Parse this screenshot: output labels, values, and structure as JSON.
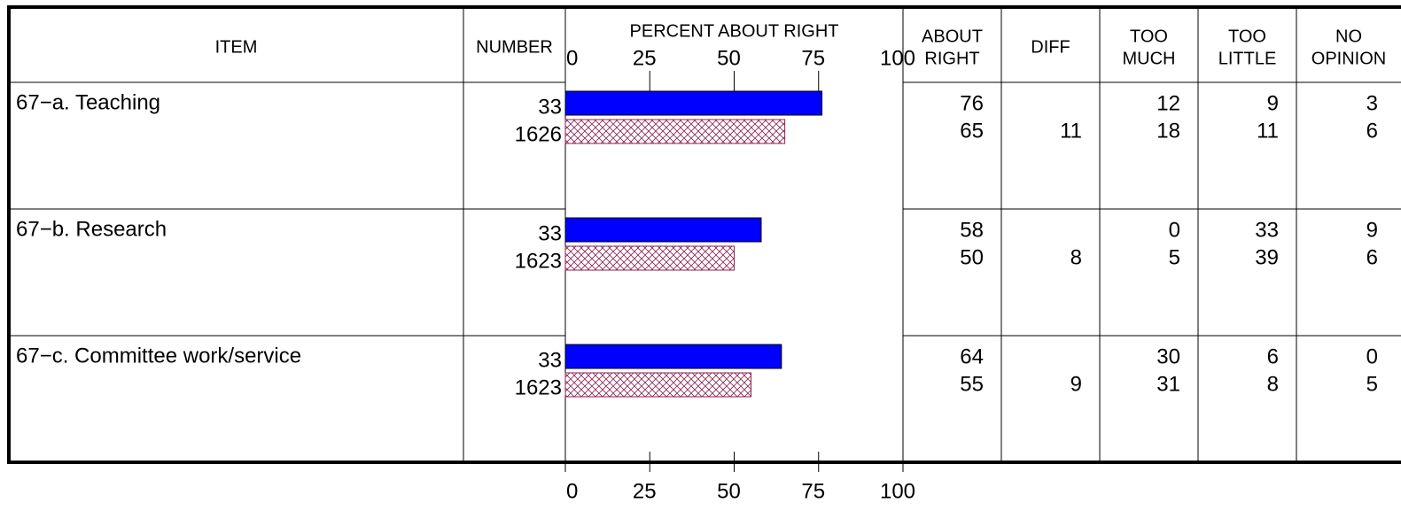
{
  "chart_data": {
    "type": "bar",
    "headers": [
      [
        "ITEM"
      ],
      [
        "NUMBER"
      ],
      [
        "PERCENT ABOUT RIGHT"
      ],
      [
        "ABOUT",
        "RIGHT"
      ],
      [
        "DIFF"
      ],
      [
        "TOO",
        "MUCH"
      ],
      [
        "TOO",
        "LITTLE"
      ],
      [
        "NO",
        "OPINION"
      ]
    ],
    "xlim": [
      0,
      100
    ],
    "xticks": [
      0,
      25,
      50,
      75,
      100
    ],
    "colors": [
      "#0000ff",
      "#8b2252"
    ],
    "rows": [
      {
        "item": "67−a. Teaching",
        "number": [
          33,
          1626
        ],
        "about_right": [
          76,
          65
        ],
        "diff": 11,
        "too_much": [
          12,
          18
        ],
        "too_little": [
          9,
          11
        ],
        "no_opinion": [
          3,
          6
        ]
      },
      {
        "item": "67−b. Research",
        "number": [
          33,
          1623
        ],
        "about_right": [
          58,
          50
        ],
        "diff": 8,
        "too_much": [
          0,
          5
        ],
        "too_little": [
          33,
          39
        ],
        "no_opinion": [
          9,
          6
        ]
      },
      {
        "item": "67−c. Committee work/service",
        "number": [
          33,
          1623
        ],
        "about_right": [
          64,
          55
        ],
        "diff": 9,
        "too_much": [
          30,
          31
        ],
        "too_little": [
          6,
          8
        ],
        "no_opinion": [
          0,
          5
        ]
      }
    ]
  }
}
